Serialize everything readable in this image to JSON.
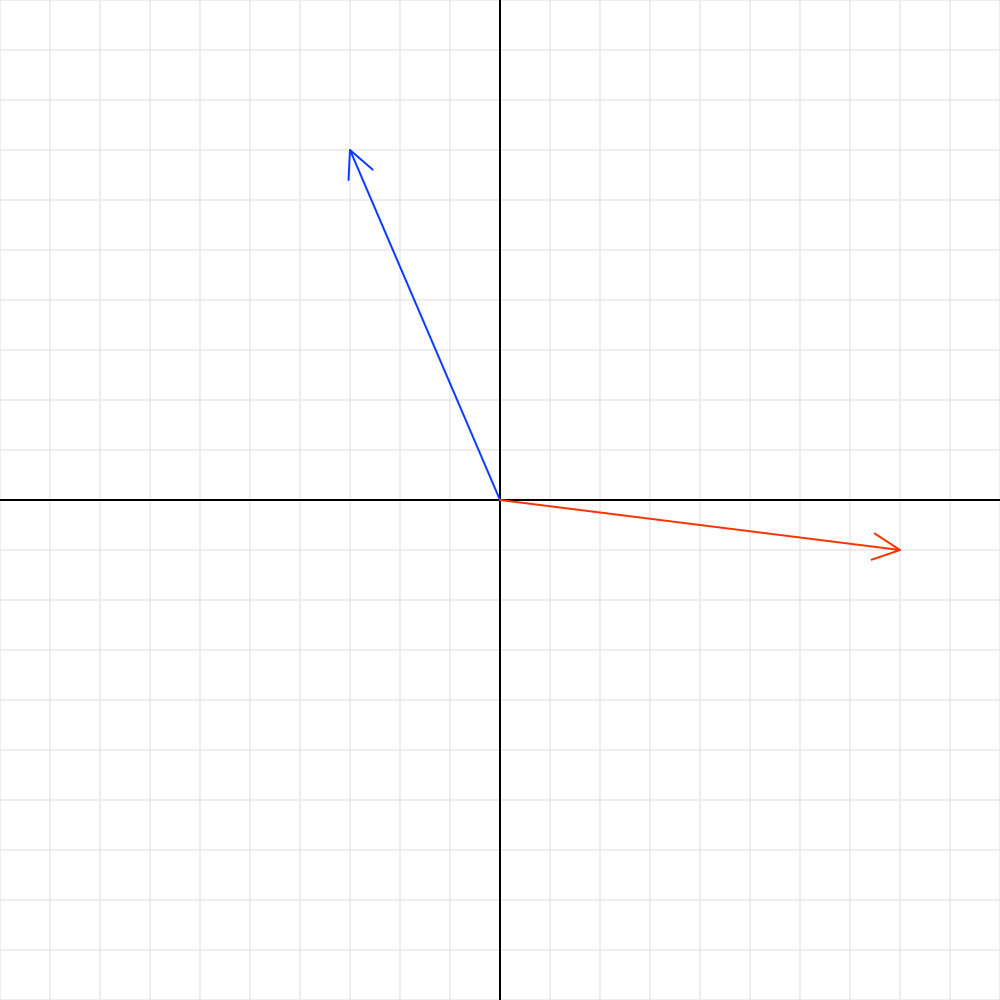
{
  "chart_data": {
    "type": "vector",
    "title": "",
    "xlabel": "",
    "ylabel": "",
    "xlim": [
      -10,
      10
    ],
    "ylim": [
      -10,
      10
    ],
    "grid": true,
    "grid_step": 1,
    "axes_through_origin": true,
    "vectors": [
      {
        "id": "blue",
        "from": [
          0,
          0
        ],
        "to": [
          -3,
          7
        ],
        "color": "#0a3cff"
      },
      {
        "id": "red",
        "from": [
          0,
          0
        ],
        "to": [
          8,
          -1
        ],
        "color": "#ff3300"
      }
    ]
  },
  "colors": {
    "grid": "#dddddd",
    "axes": "#000000",
    "background": "#ffffff"
  }
}
